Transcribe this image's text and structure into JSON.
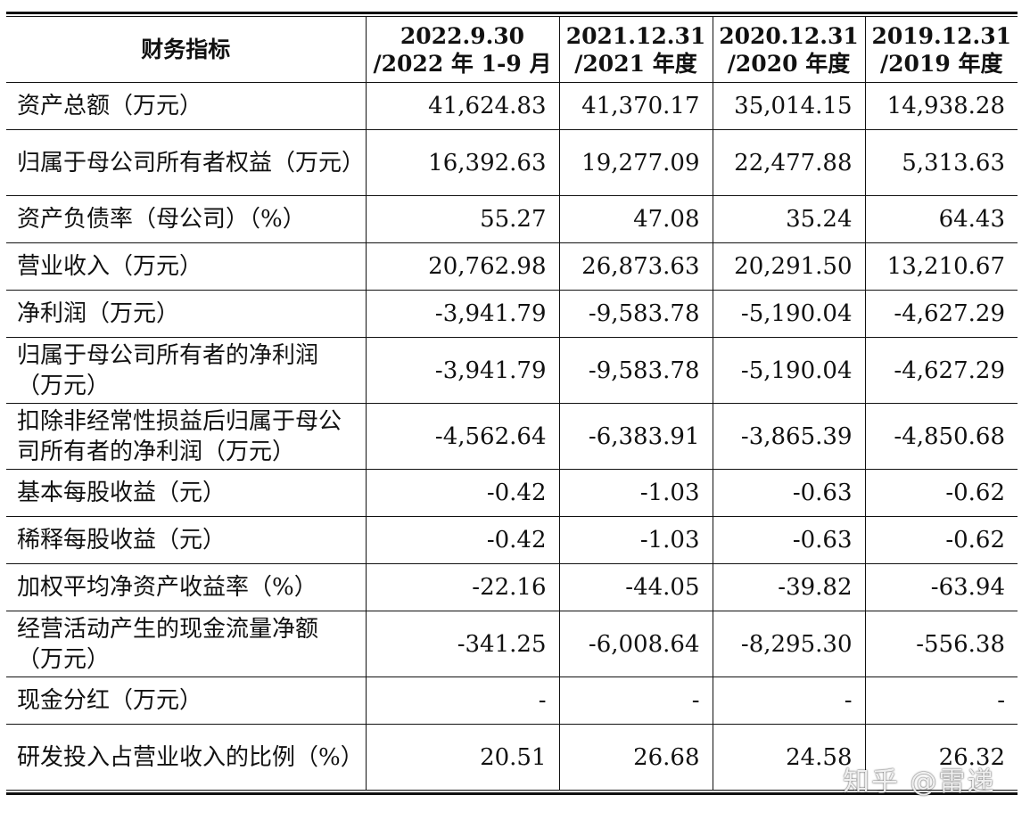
{
  "table": {
    "headers": [
      {
        "line1": "财务指标",
        "line2": ""
      },
      {
        "line1": "2022.9.30",
        "line2": "/2022 年 1-9 月"
      },
      {
        "line1": "2021.12.31",
        "line2": "/2021 年度"
      },
      {
        "line1": "2020.12.31",
        "line2": "/2020 年度"
      },
      {
        "line1": "2019.12.31",
        "line2": "/2019 年度"
      }
    ],
    "rows": [
      {
        "label": "资产总额（万元）",
        "values": [
          "41,624.83",
          "41,370.17",
          "35,014.15",
          "14,938.28"
        ]
      },
      {
        "label": "归属于母公司所有者权益（万元）",
        "values": [
          "16,392.63",
          "19,277.09",
          "22,477.88",
          "5,313.63"
        ]
      },
      {
        "label": "资产负债率（母公司）（%）",
        "values": [
          "55.27",
          "47.08",
          "35.24",
          "64.43"
        ]
      },
      {
        "label": "营业收入（万元）",
        "values": [
          "20,762.98",
          "26,873.63",
          "20,291.50",
          "13,210.67"
        ]
      },
      {
        "label": "净利润（万元）",
        "values": [
          "-3,941.79",
          "-9,583.78",
          "-5,190.04",
          "-4,627.29"
        ]
      },
      {
        "label": "归属于母公司所有者的净利润（万元）",
        "values": [
          "-3,941.79",
          "-9,583.78",
          "-5,190.04",
          "-4,627.29"
        ]
      },
      {
        "label": "扣除非经常性损益后归属于母公司所有者的净利润（万元）",
        "values": [
          "-4,562.64",
          "-6,383.91",
          "-3,865.39",
          "-4,850.68"
        ]
      },
      {
        "label": "基本每股收益（元）",
        "values": [
          "-0.42",
          "-1.03",
          "-0.63",
          "-0.62"
        ]
      },
      {
        "label": "稀释每股收益（元）",
        "values": [
          "-0.42",
          "-1.03",
          "-0.63",
          "-0.62"
        ]
      },
      {
        "label": "加权平均净资产收益率（%）",
        "values": [
          "-22.16",
          "-44.05",
          "-39.82",
          "-63.94"
        ]
      },
      {
        "label": "经营活动产生的现金流量净额（万元）",
        "values": [
          "-341.25",
          "-6,008.64",
          "-8,295.30",
          "-556.38"
        ]
      },
      {
        "label": "现金分红（万元）",
        "values": [
          "-",
          "-",
          "-",
          "-"
        ]
      },
      {
        "label": "研发投入占营业收入的比例（%）",
        "values": [
          "20.51",
          "26.68",
          "24.58",
          "26.32"
        ]
      }
    ]
  },
  "watermark": "知乎 @雷递"
}
